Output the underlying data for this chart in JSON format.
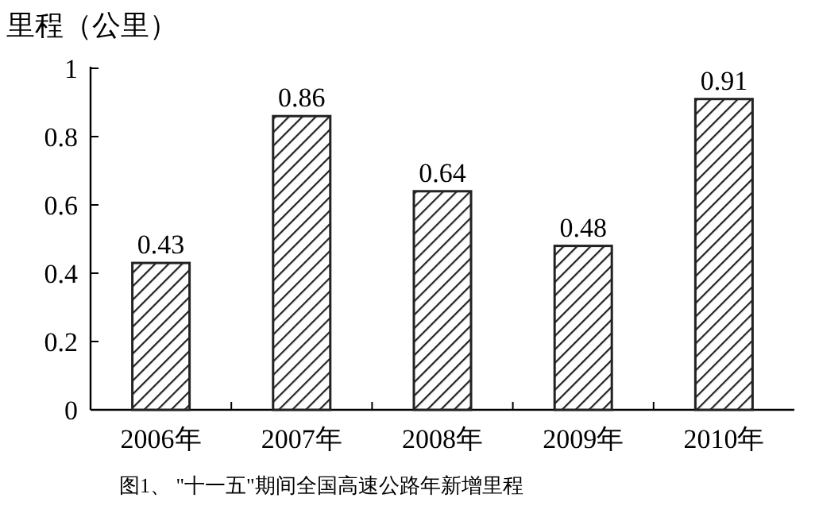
{
  "chart_data": {
    "type": "bar",
    "ylabel": "里程（公里）",
    "categories": [
      "2006年",
      "2007年",
      "2008年",
      "2009年",
      "2010年"
    ],
    "values": [
      0.43,
      0.86,
      0.64,
      0.48,
      0.91
    ],
    "color": "#222222",
    "ylim": [
      0,
      1
    ],
    "yticks": [
      0,
      0.2,
      0.4,
      0.6,
      0.8,
      1
    ],
    "data_labels": true,
    "grid": false,
    "annotations": [
      "图1、 \"十一五\"期间全国高速公路年新增里程"
    ]
  }
}
